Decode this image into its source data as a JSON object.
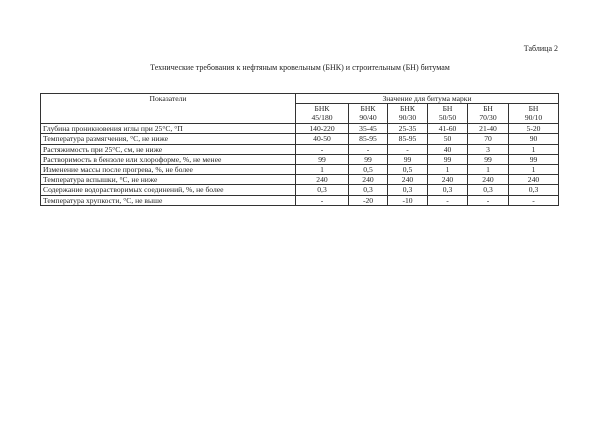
{
  "table_number": "Таблица 2",
  "caption": "Технические требования к нефтяным кровельным (БНК) и строительным (БН) битумам",
  "table": {
    "header_indicator": "Показатели",
    "header_group": "Значение для битума марки",
    "grades": [
      {
        "type": "БНК",
        "mark": "45/180"
      },
      {
        "type": "БНК",
        "mark": "90/40"
      },
      {
        "type": "БНК",
        "mark": "90/30"
      },
      {
        "type": "БН",
        "mark": "50/50"
      },
      {
        "type": "БН",
        "mark": "70/30"
      },
      {
        "type": "БН",
        "mark": "90/10"
      }
    ],
    "rows": [
      {
        "label": "Глубина проникновения иглы при 25°С, °П",
        "values": [
          "140-220",
          "35-45",
          "25-35",
          "41-60",
          "21-40",
          "5-20"
        ]
      },
      {
        "label": "Температура размягчения, °С, не ниже",
        "values": [
          "40-50",
          "85-95",
          "85-95",
          "50",
          "70",
          "90"
        ]
      },
      {
        "label": "Растяжимость при 25°С, см, не ниже",
        "values": [
          "-",
          "-",
          "-",
          "40",
          "3",
          "1"
        ]
      },
      {
        "label": "Растворимость в бензоле или хлороформе, %, не менее",
        "values": [
          "99",
          "99",
          "99",
          "99",
          "99",
          "99"
        ]
      },
      {
        "label": "Изменение массы после прогрева, %, не более",
        "values": [
          "1",
          "0,5",
          "0,5",
          "1",
          "1",
          "1"
        ]
      },
      {
        "label": "Температура вспышки, °С, не ниже",
        "values": [
          "240",
          "240",
          "240",
          "240",
          "240",
          "240"
        ]
      },
      {
        "label": "Содержание водорастворимых соединений, %, не более",
        "values": [
          "0,3",
          "0,3",
          "0,3",
          "0,3",
          "0,3",
          "0,3"
        ]
      },
      {
        "label": "Температура хрупкости, °С, не выше",
        "values": [
          "-",
          "-20",
          "-10",
          "-",
          "-",
          "-"
        ]
      }
    ]
  }
}
